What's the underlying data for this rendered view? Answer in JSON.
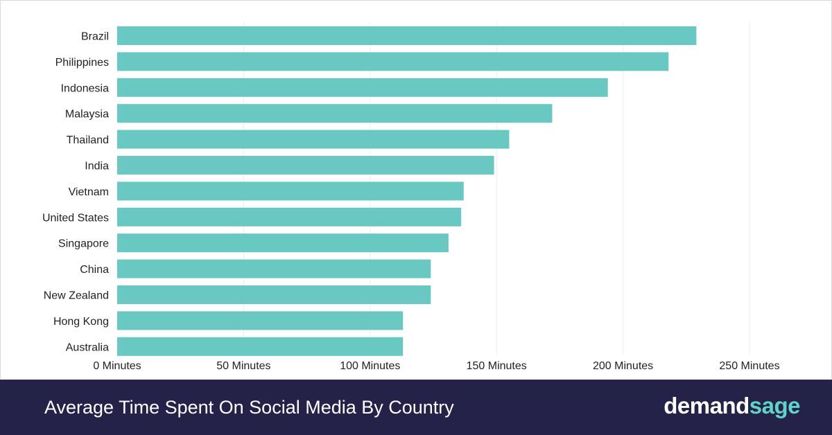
{
  "chart_data": {
    "type": "bar",
    "orientation": "horizontal",
    "title": "Average Time Spent On Social Media By Country",
    "categories": [
      "Brazil",
      "Philippines",
      "Indonesia",
      "Malaysia",
      "Thailand",
      "India",
      "Vietnam",
      "United States",
      "Singapore",
      "China",
      "New Zealand",
      "Hong Kong",
      "Australia"
    ],
    "values": [
      229,
      218,
      194,
      172,
      155,
      149,
      137,
      136,
      131,
      124,
      124,
      113,
      113
    ],
    "xlim": [
      0,
      250
    ],
    "xticks": [
      0,
      50,
      100,
      150,
      200,
      250
    ],
    "xtick_labels": [
      "0 Minutes",
      "50 Minutes",
      "100 Minutes",
      "150 Minutes",
      "200 Minutes",
      "250 Minutes"
    ],
    "grid": "vertical",
    "bar_color": "#6ac8c2"
  },
  "footer": {
    "title": "Average Time Spent On Social Media By Country",
    "brand_part1": "demand",
    "brand_part2": "sage",
    "background": "#25224a",
    "brand_accent": "#5fd4c4"
  }
}
